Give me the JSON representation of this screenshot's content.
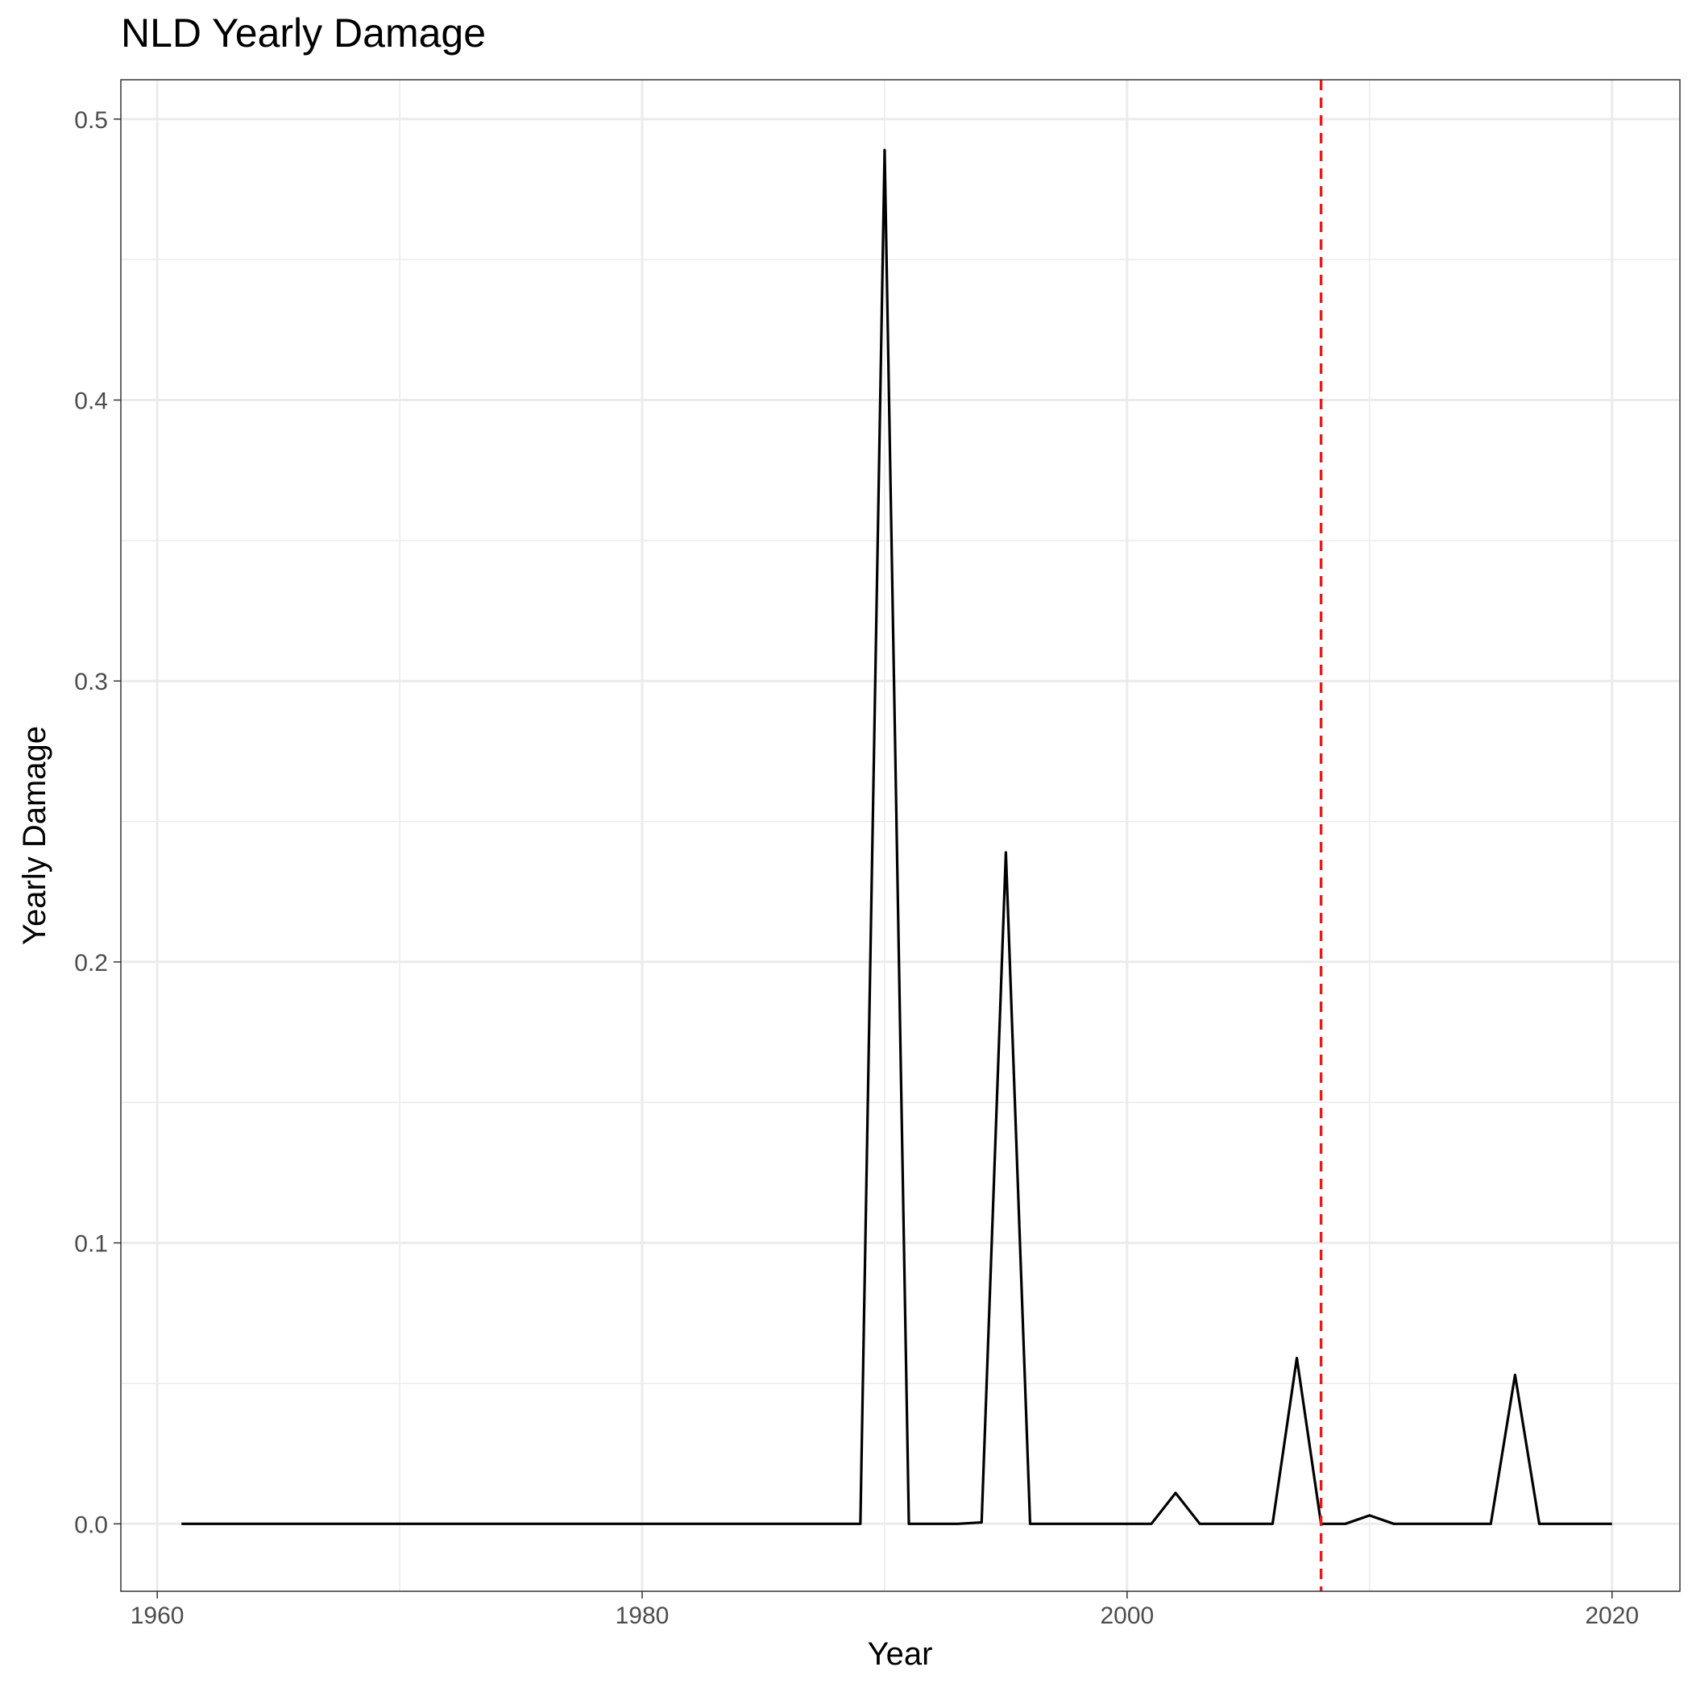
{
  "chart_data": {
    "type": "line",
    "title": "NLD Yearly Damage",
    "xlabel": "Year",
    "ylabel": "Yearly Damage",
    "xlim": [
      1958.5,
      2022.8
    ],
    "ylim": [
      -0.024,
      0.514
    ],
    "x_ticks": [
      1960,
      1980,
      2000,
      2020
    ],
    "x_tick_labels": [
      "1960",
      "1980",
      "2000",
      "2020"
    ],
    "x_minor_ticks": [
      1970,
      1990,
      2010
    ],
    "y_ticks": [
      0.0,
      0.1,
      0.2,
      0.3,
      0.4,
      0.5
    ],
    "y_tick_labels": [
      "0.0",
      "0.1",
      "0.2",
      "0.3",
      "0.4",
      "0.5"
    ],
    "y_minor_ticks": [
      0.05,
      0.15,
      0.25,
      0.35,
      0.45
    ],
    "grid": true,
    "series": [
      {
        "color": "#000000",
        "x": [
          1961,
          1962,
          1963,
          1964,
          1965,
          1966,
          1967,
          1968,
          1969,
          1970,
          1971,
          1972,
          1973,
          1974,
          1975,
          1976,
          1977,
          1978,
          1979,
          1980,
          1981,
          1982,
          1983,
          1984,
          1985,
          1986,
          1987,
          1988,
          1989,
          1990,
          1991,
          1992,
          1993,
          1994,
          1995,
          1996,
          1997,
          1998,
          1999,
          2000,
          2001,
          2002,
          2003,
          2004,
          2005,
          2006,
          2007,
          2008,
          2009,
          2010,
          2011,
          2012,
          2013,
          2014,
          2015,
          2016,
          2017,
          2018,
          2019,
          2020
        ],
        "y": [
          0,
          0,
          0,
          0,
          0,
          0,
          0,
          0,
          0,
          0,
          0,
          0,
          0,
          0,
          0,
          0,
          0,
          0,
          0,
          0,
          0,
          0,
          0,
          0,
          0,
          0,
          0,
          0,
          0,
          0.489,
          0,
          0,
          0,
          0.0005,
          0.239,
          0,
          0,
          0,
          0,
          0,
          0,
          0.011,
          0,
          0,
          0,
          0,
          0.059,
          0,
          0,
          0.003,
          0,
          0,
          0,
          0,
          0,
          0.053,
          0,
          0,
          0,
          0
        ]
      }
    ],
    "reference_lines": [
      {
        "orientation": "vertical",
        "x": 2008,
        "color": "#e41a1c",
        "style": "dashed"
      }
    ]
  }
}
